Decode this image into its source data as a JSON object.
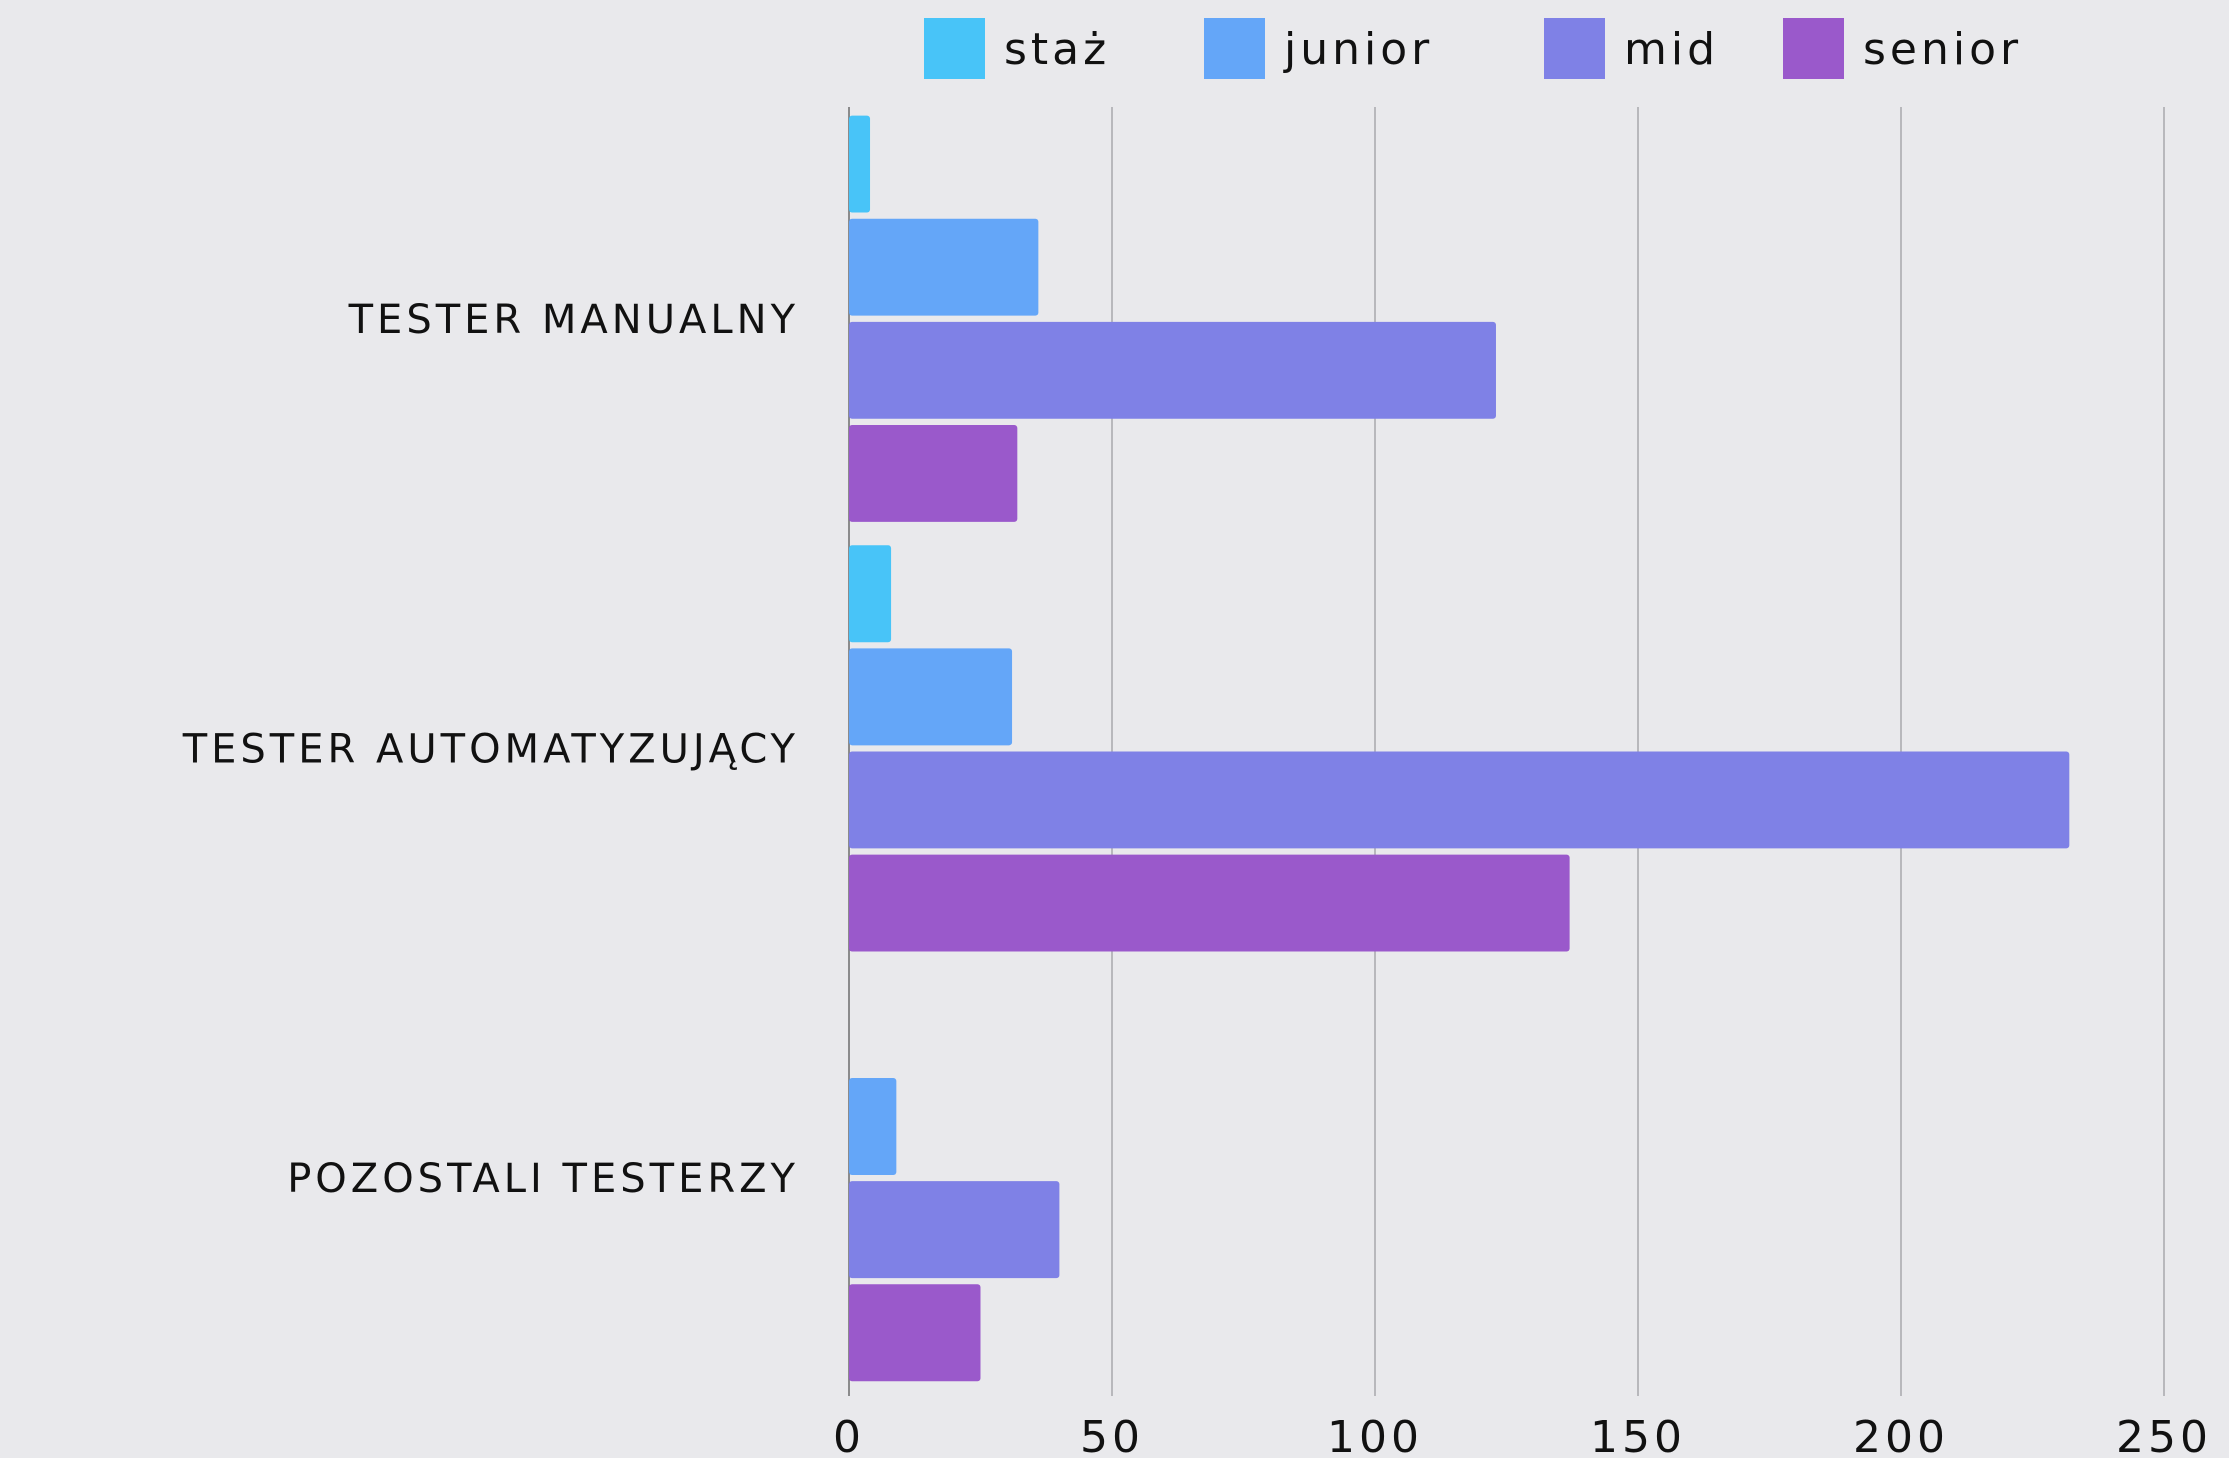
{
  "chart_data": {
    "type": "hbar",
    "categories": [
      "Tester manualny",
      "Tester automatyzujący",
      "Pozostali testerzy"
    ],
    "series": [
      {
        "name": "staż",
        "color": "#48c4f8",
        "values": [
          4,
          8,
          null
        ]
      },
      {
        "name": "junior",
        "color": "#64a6f8",
        "values": [
          36,
          31,
          9
        ]
      },
      {
        "name": "mid",
        "color": "#7f81e6",
        "values": [
          123,
          232,
          40
        ]
      },
      {
        "name": "senior",
        "color": "#9a59cb",
        "values": [
          32,
          137,
          25
        ]
      }
    ],
    "xlim": [
      0,
      250
    ],
    "xticks": [
      0,
      50,
      100,
      150,
      200,
      250
    ],
    "grid": true,
    "legend": "top"
  }
}
